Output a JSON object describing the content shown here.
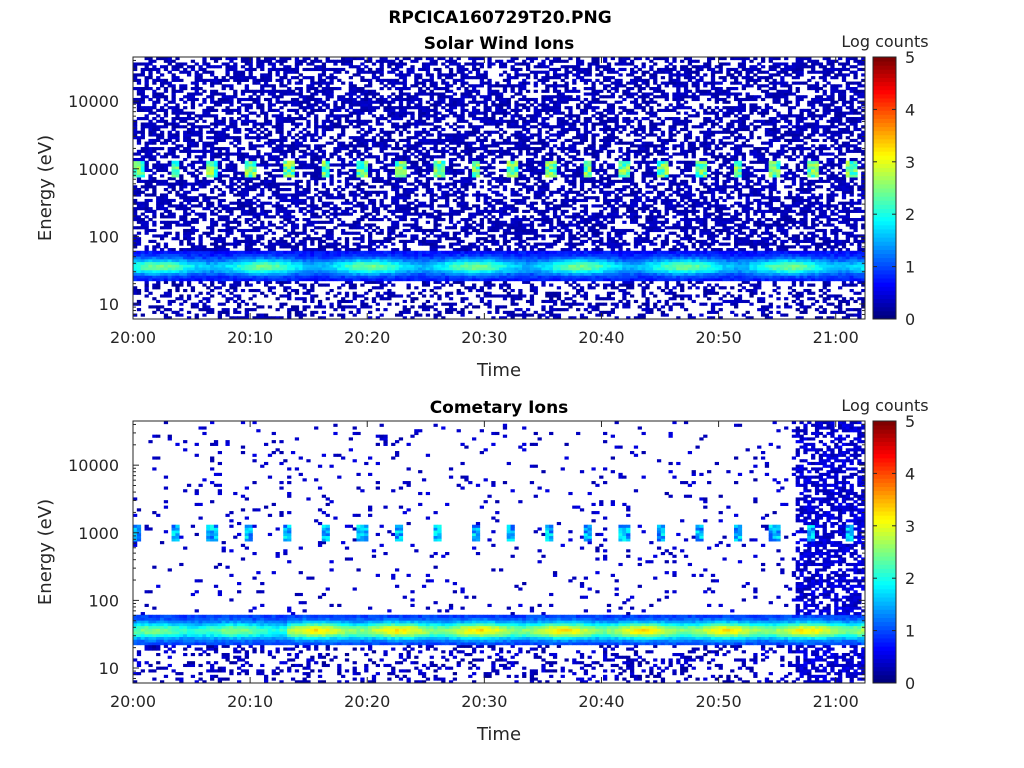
{
  "figure_title": "RPCICA160729T20.PNG",
  "colors": {
    "colormap": [
      "#00007f",
      "#0000ff",
      "#007fff",
      "#00ffff",
      "#7fff7f",
      "#ffff00",
      "#ff7f00",
      "#ff0000",
      "#7f0000"
    ],
    "axis": "#262626",
    "background": "#ffffff"
  },
  "chart_data": [
    {
      "type": "heatmap",
      "title": "Solar Wind Ions",
      "xlabel": "Time",
      "ylabel": "Energy (eV)",
      "x_tick_labels": [
        "20:00",
        "20:10",
        "20:20",
        "20:30",
        "20:40",
        "20:50",
        "21:00"
      ],
      "x_ticks_minutes": [
        0,
        10,
        20,
        30,
        40,
        50,
        60
      ],
      "xlim_minutes": [
        0,
        62.5
      ],
      "y_scale": "log",
      "y_tick_labels": [
        "10",
        "100",
        "1000",
        "10000"
      ],
      "y_ticks": [
        10,
        100,
        1000,
        10000
      ],
      "ylim": [
        6,
        45000
      ],
      "colorbar_label": "Log counts",
      "colorbar_range": [
        0,
        5
      ],
      "colorbar_ticks": [
        "0",
        "1",
        "2",
        "3",
        "4",
        "5"
      ],
      "background_counts": "dense low counts (~0.3) across all energies",
      "features": [
        {
          "energy_ev": [
            25,
            60
          ],
          "log_counts": [
            1.0,
            2.3
          ],
          "time_minutes": [
            0,
            62.5
          ],
          "note": "main band near 30-40 eV"
        },
        {
          "energy_ev": [
            800,
            1200
          ],
          "log_counts": [
            2.0,
            3.0
          ],
          "period_minutes": 3.2,
          "note": "periodic spots near 1000 eV"
        }
      ]
    },
    {
      "type": "heatmap",
      "title": "Cometary Ions",
      "xlabel": "Time",
      "ylabel": "Energy (eV)",
      "x_tick_labels": [
        "20:00",
        "20:10",
        "20:20",
        "20:30",
        "20:40",
        "20:50",
        "21:00"
      ],
      "x_ticks_minutes": [
        0,
        10,
        20,
        30,
        40,
        50,
        60
      ],
      "xlim_minutes": [
        0,
        62.5
      ],
      "y_scale": "log",
      "y_tick_labels": [
        "10",
        "100",
        "1000",
        "10000"
      ],
      "y_ticks": [
        10,
        100,
        1000,
        10000
      ],
      "ylim": [
        6,
        45000
      ],
      "colorbar_label": "Log counts",
      "colorbar_range": [
        0,
        5
      ],
      "colorbar_ticks": [
        "0",
        "1",
        "2",
        "3",
        "4",
        "5"
      ],
      "background_counts": "sparse low counts; dense after ~20:56",
      "features": [
        {
          "energy_ev": [
            25,
            60
          ],
          "log_counts": [
            2.0,
            3.2
          ],
          "time_minutes": [
            0,
            62.5
          ],
          "note": "main band near 30-40 eV"
        },
        {
          "energy_ev": [
            800,
            1200
          ],
          "log_counts": [
            1.2,
            2.2
          ],
          "period_minutes": 3.2,
          "note": "periodic spots near 1000 eV"
        },
        {
          "energy_ev": [
            6,
            45000
          ],
          "log_counts": [
            0.3,
            1.5
          ],
          "time_minutes": [
            56.5,
            62.5
          ],
          "note": "broad dense region at end"
        }
      ]
    }
  ]
}
